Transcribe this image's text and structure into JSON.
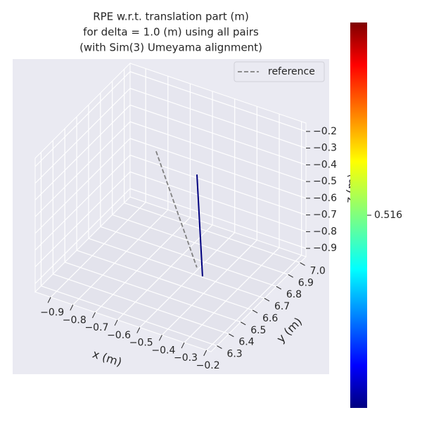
{
  "chart_data": {
    "type": "line3d",
    "title": [
      "RPE w.r.t. translation part (m)",
      "for delta = 1.0 (m) using all pairs",
      "(with Sim(3) Umeyama alignment)"
    ],
    "xlabel": "x (m)",
    "ylabel": "y (m)",
    "zlabel": "z (m)",
    "xlim": [
      -0.97,
      -0.18
    ],
    "ylim": [
      6.25,
      7.05
    ],
    "zlim": [
      -0.95,
      -0.15
    ],
    "xticks": [
      {
        "value": -0.9,
        "label": "−0.9"
      },
      {
        "value": -0.8,
        "label": "−0.8"
      },
      {
        "value": -0.7,
        "label": "−0.7"
      },
      {
        "value": -0.6,
        "label": "−0.6"
      },
      {
        "value": -0.5,
        "label": "−0.5"
      },
      {
        "value": -0.4,
        "label": "−0.4"
      },
      {
        "value": -0.3,
        "label": "−0.3"
      },
      {
        "value": -0.2,
        "label": "−0.2"
      }
    ],
    "yticks": [
      6.3,
      6.4,
      6.5,
      6.6,
      6.7,
      6.8,
      6.9,
      {
        "value": 7.0,
        "label": "7.0"
      }
    ],
    "zticks": [
      {
        "value": -0.9,
        "label": "−0.9"
      },
      {
        "value": -0.8,
        "label": "−0.8"
      },
      {
        "value": -0.7,
        "label": "−0.7"
      },
      {
        "value": -0.6,
        "label": "−0.6"
      },
      {
        "value": -0.5,
        "label": "−0.5"
      },
      {
        "value": -0.4,
        "label": "−0.4"
      },
      {
        "value": -0.3,
        "label": "−0.3"
      },
      {
        "value": -0.2,
        "label": "−0.2"
      }
    ],
    "grid": true,
    "legend": "upper right",
    "series": [
      {
        "name": "reference",
        "color": "#808080",
        "dashed": true,
        "x": [
          -0.616,
          -0.482
        ],
        "y": [
          6.605,
          6.697
        ],
        "z": [
          -0.2,
          -0.9
        ]
      },
      {
        "color": "#00007f",
        "x": [
          -0.513,
          -0.433
        ],
        "y": [
          6.756,
          6.653
        ],
        "z": [
          -0.4,
          -0.9
        ]
      }
    ],
    "colorbar": {
      "clim": [
        0.506,
        0.526
      ],
      "ticks": [
        0.516
      ]
    }
  }
}
